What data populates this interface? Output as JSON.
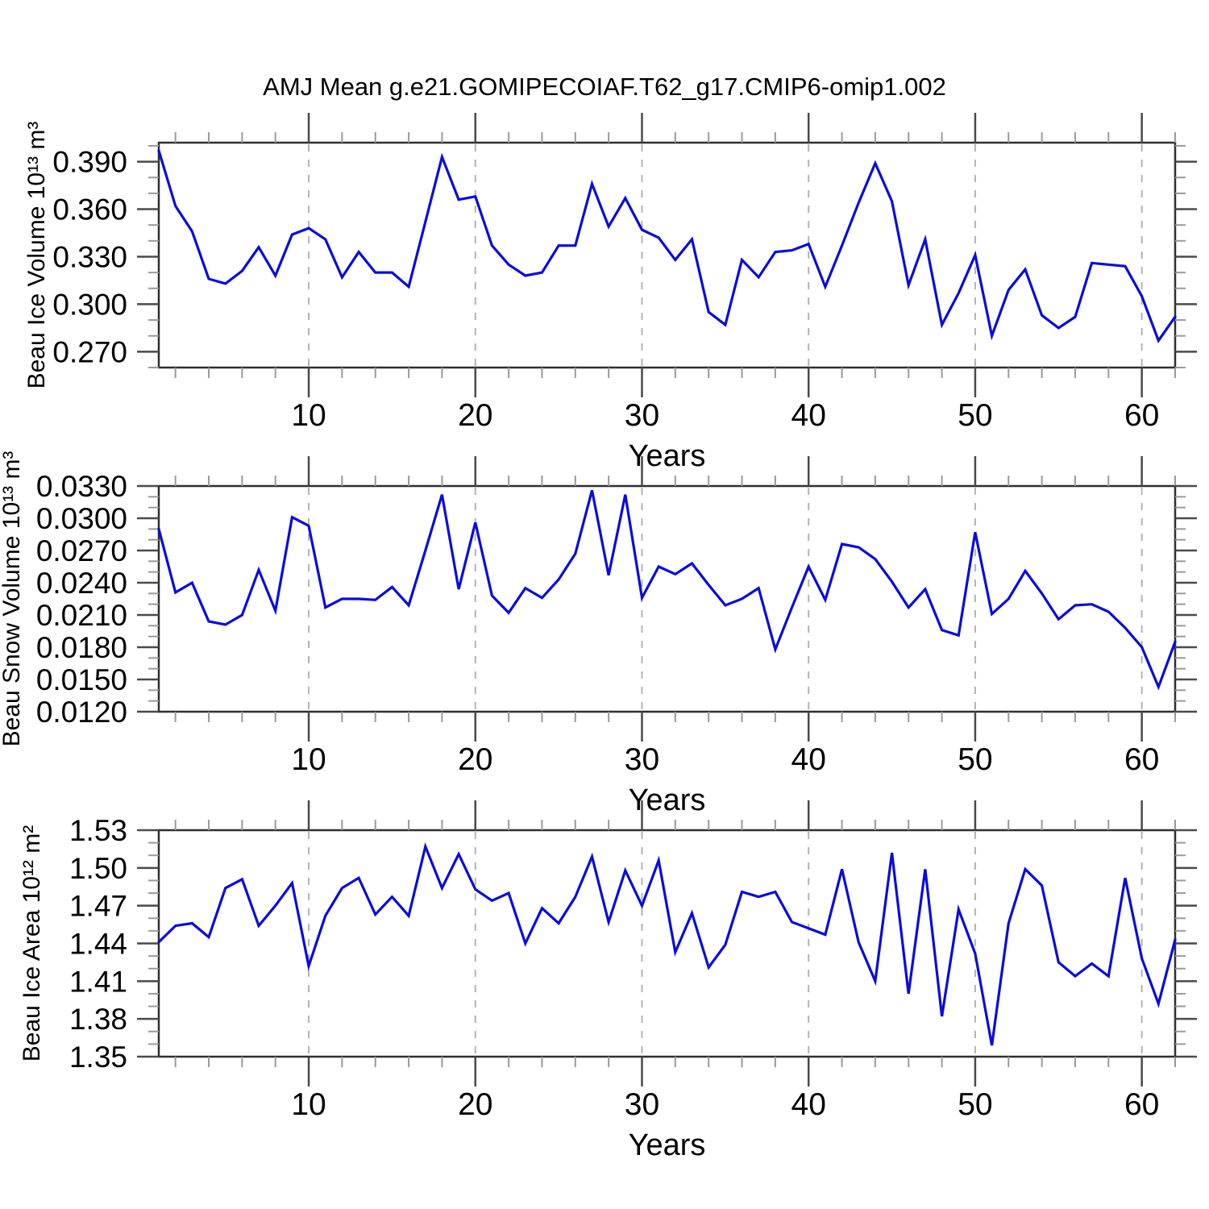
{
  "title": "AMJ Mean g.e21.GOMIPECOIAF.T62_g17.CMIP6-omip1.002",
  "colors": {
    "line": "#0a0ae0",
    "frame": "#2f2f2f",
    "tick_major": "#4a4a4a",
    "tick_minor": "#9a9a9a",
    "grid": "#b3b3b3",
    "text": "#000000",
    "background": "#ffffff"
  },
  "x_axis": {
    "label": "Years",
    "range": [
      1,
      62
    ],
    "major_ticks": [
      10,
      20,
      30,
      40,
      50,
      60
    ],
    "tick_labels": [
      "10",
      "20",
      "30",
      "40",
      "50",
      "60"
    ],
    "minor_tick_step": 2
  },
  "chart_data": [
    {
      "type": "line",
      "name": "beau-ice-volume",
      "ylabel": "Beau Ice Volume 10¹³ m³",
      "ylim": [
        0.26,
        0.402
      ],
      "ytick_values": [
        0.27,
        0.3,
        0.33,
        0.36,
        0.39
      ],
      "ytick_labels": [
        "0.270",
        "0.300",
        "0.330",
        "0.360",
        "0.390"
      ],
      "yminor_step": 0.01,
      "x_start": 1,
      "values": [
        0.397,
        0.362,
        0.346,
        0.316,
        0.313,
        0.321,
        0.336,
        0.318,
        0.344,
        0.348,
        0.341,
        0.317,
        0.333,
        0.32,
        0.32,
        0.311,
        0.352,
        0.393,
        0.366,
        0.368,
        0.337,
        0.325,
        0.318,
        0.32,
        0.337,
        0.337,
        0.376,
        0.349,
        0.367,
        0.347,
        0.342,
        0.328,
        0.341,
        0.295,
        0.287,
        0.328,
        0.317,
        0.333,
        0.334,
        0.338,
        0.311,
        0.337,
        0.364,
        0.389,
        0.365,
        0.312,
        0.341,
        0.287,
        0.307,
        0.331,
        0.28,
        0.309,
        0.322,
        0.293,
        0.285,
        0.292,
        0.326,
        0.325,
        0.324,
        0.305,
        0.277,
        0.292
      ]
    },
    {
      "type": "line",
      "name": "beau-snow-volume",
      "ylabel": "Beau Snow Volume 10¹³ m³",
      "ylim": [
        0.012,
        0.033
      ],
      "ytick_values": [
        0.012,
        0.015,
        0.018,
        0.021,
        0.024,
        0.027,
        0.03,
        0.033
      ],
      "ytick_labels": [
        "0.0120",
        "0.0150",
        "0.0180",
        "0.0210",
        "0.0240",
        "0.0270",
        "0.0300",
        "0.0330"
      ],
      "yminor_step": 0.001,
      "x_start": 1,
      "values": [
        0.029,
        0.0231,
        0.024,
        0.0204,
        0.0201,
        0.021,
        0.0252,
        0.0214,
        0.0301,
        0.0293,
        0.0217,
        0.0225,
        0.0225,
        0.0224,
        0.0236,
        0.0219,
        0.027,
        0.0322,
        0.0234,
        0.0296,
        0.0228,
        0.0212,
        0.0235,
        0.0226,
        0.0243,
        0.0267,
        0.0326,
        0.0247,
        0.0322,
        0.0226,
        0.0255,
        0.0248,
        0.0258,
        0.0238,
        0.0219,
        0.0225,
        0.0235,
        0.0178,
        0.0217,
        0.0255,
        0.0224,
        0.0276,
        0.0273,
        0.0262,
        0.0241,
        0.0217,
        0.0234,
        0.0196,
        0.0191,
        0.0287,
        0.0211,
        0.0225,
        0.0251,
        0.023,
        0.0206,
        0.0219,
        0.022,
        0.0213,
        0.0198,
        0.018,
        0.0143,
        0.0185
      ]
    },
    {
      "type": "line",
      "name": "beau-ice-area",
      "ylabel": "Beau Ice Area 10¹² m²",
      "ylim": [
        1.35,
        1.53
      ],
      "ytick_values": [
        1.35,
        1.38,
        1.41,
        1.44,
        1.47,
        1.5,
        1.53
      ],
      "ytick_labels": [
        "1.35",
        "1.38",
        "1.41",
        "1.44",
        "1.47",
        "1.50",
        "1.53"
      ],
      "yminor_step": 0.01,
      "x_start": 1,
      "values": [
        1.441,
        1.454,
        1.456,
        1.445,
        1.484,
        1.491,
        1.454,
        1.47,
        1.488,
        1.422,
        1.462,
        1.484,
        1.492,
        1.463,
        1.477,
        1.462,
        1.517,
        1.484,
        1.511,
        1.483,
        1.474,
        1.48,
        1.44,
        1.468,
        1.456,
        1.477,
        1.509,
        1.457,
        1.498,
        1.47,
        1.506,
        1.433,
        1.464,
        1.421,
        1.439,
        1.481,
        1.477,
        1.481,
        1.457,
        1.452,
        1.447,
        1.499,
        1.441,
        1.41,
        1.512,
        1.4,
        1.499,
        1.382,
        1.467,
        1.432,
        1.359,
        1.456,
        1.499,
        1.486,
        1.425,
        1.414,
        1.424,
        1.414,
        1.492,
        1.428,
        1.392,
        1.443
      ]
    }
  ]
}
